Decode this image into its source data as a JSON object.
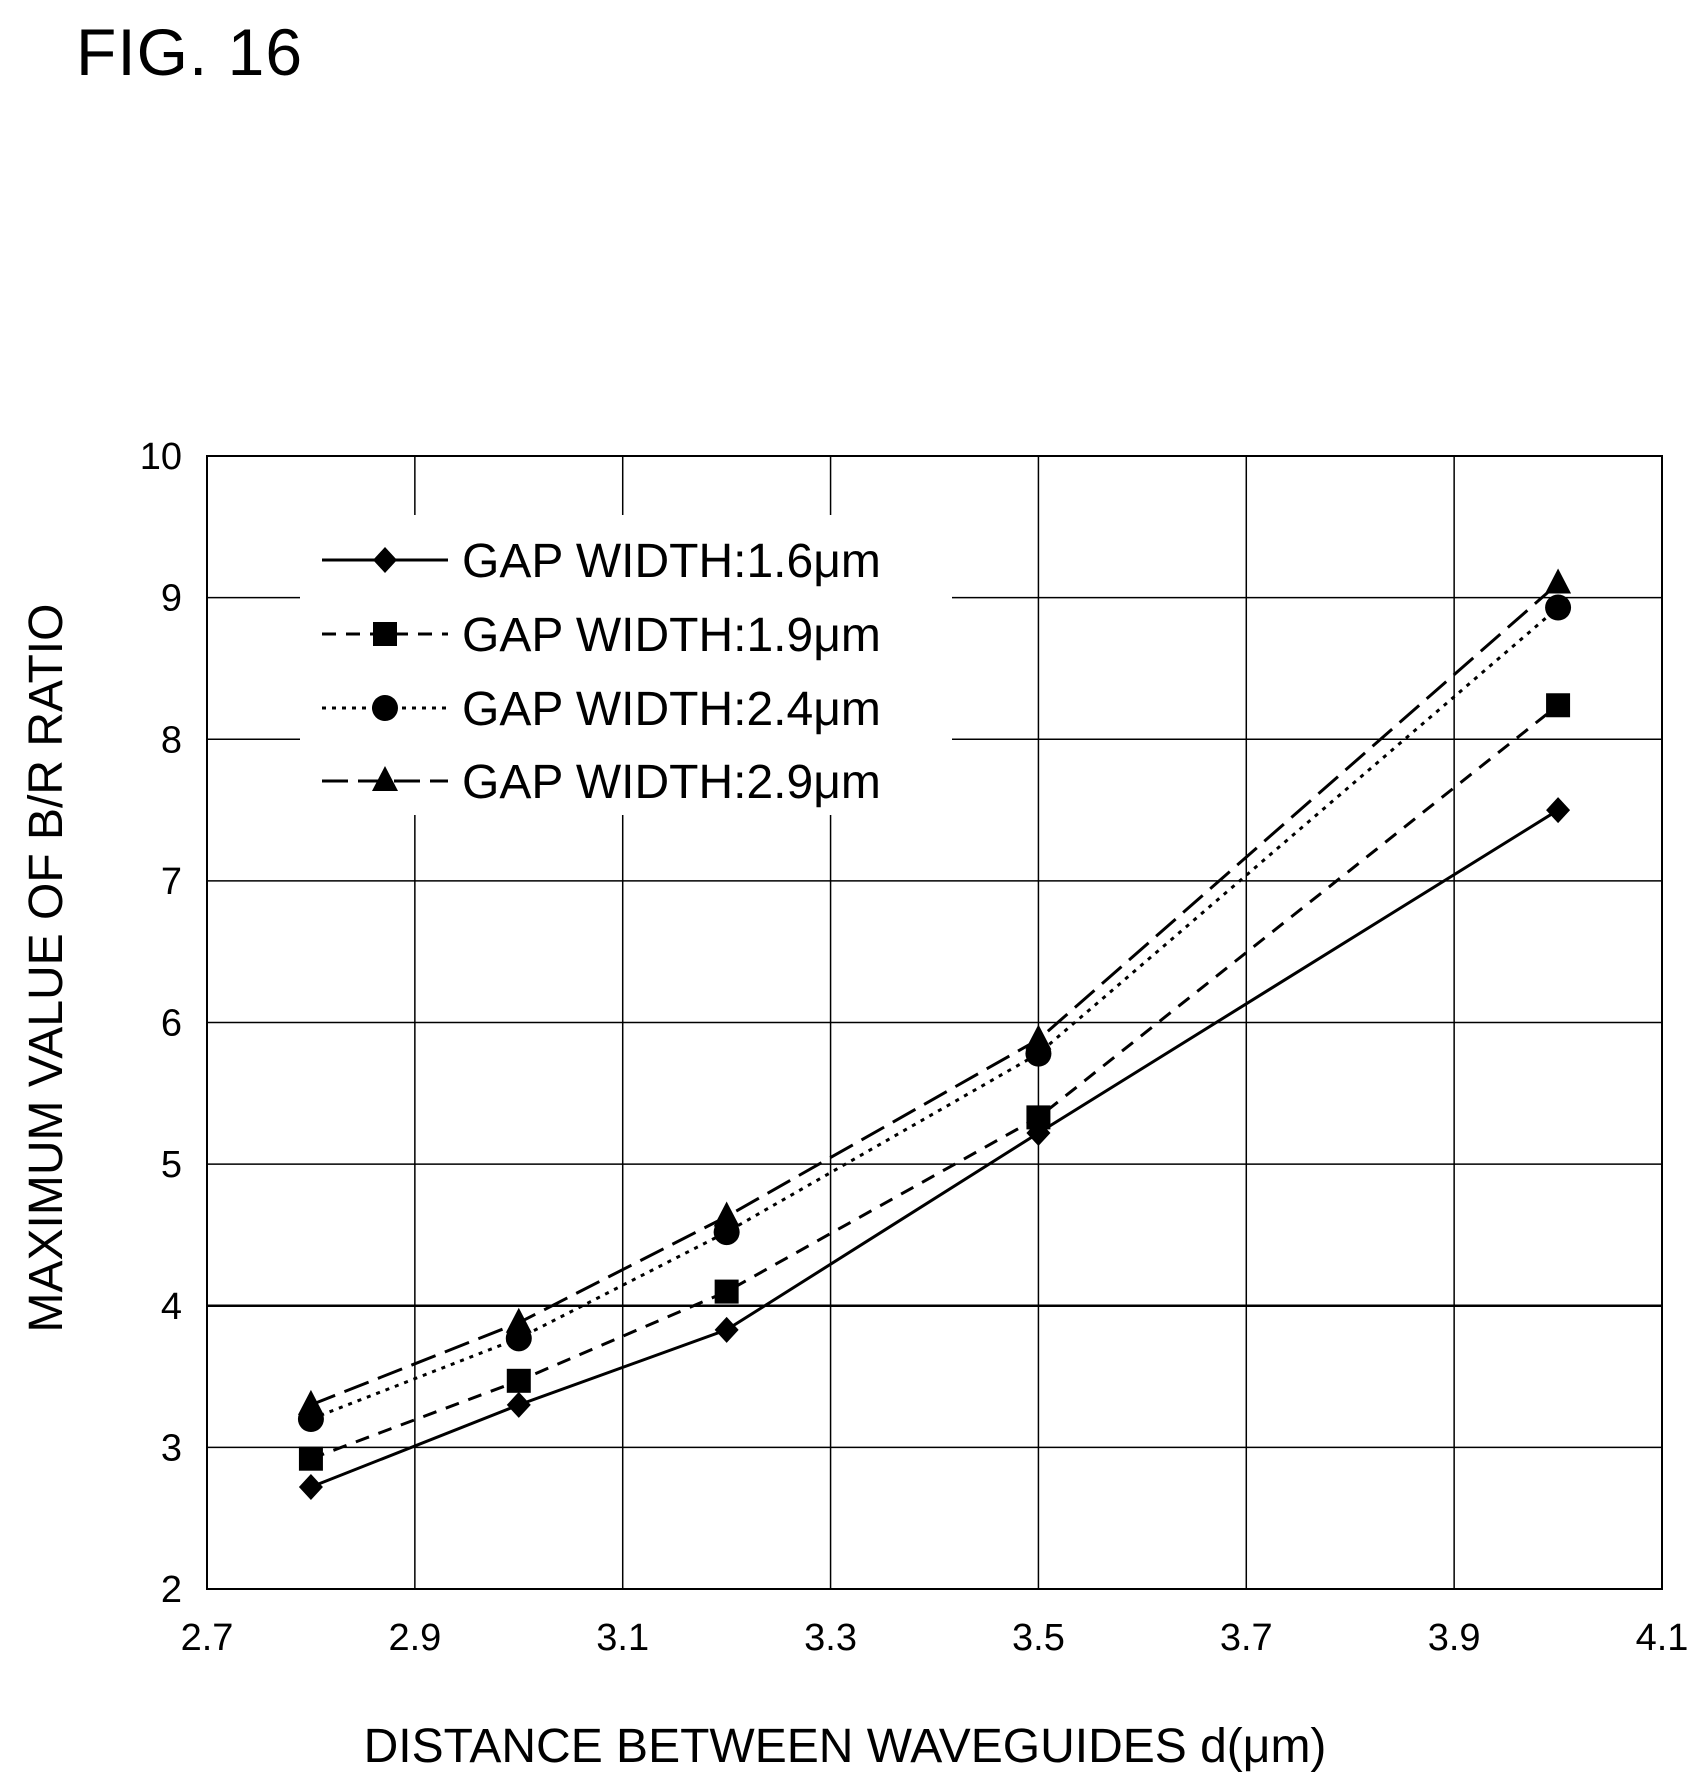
{
  "figure_title": "FIG. 16",
  "chart_data": {
    "type": "line",
    "title": "",
    "xlabel": "DISTANCE BETWEEN WAVEGUIDES d(μm)",
    "ylabel": "MAXIMUM VALUE OF B/R RATIO",
    "xlim": [
      2.7,
      4.1
    ],
    "ylim": [
      2,
      10
    ],
    "x_ticks": [
      "2.7",
      "2.9",
      "3.1",
      "3.3",
      "3.5",
      "3.7",
      "3.9",
      "4.1"
    ],
    "y_ticks": [
      "2",
      "3",
      "4",
      "5",
      "6",
      "7",
      "8",
      "9",
      "10"
    ],
    "grid": true,
    "legend_position": "top-left",
    "x": [
      2.8,
      3.0,
      3.2,
      3.5,
      4.0
    ],
    "series": [
      {
        "name": "GAP WIDTH:1.6μm",
        "marker": "diamond",
        "line": "solid",
        "values": [
          2.72,
          3.3,
          3.83,
          5.22,
          7.5
        ]
      },
      {
        "name": "GAP WIDTH:1.9μm",
        "marker": "square",
        "line": "dashed",
        "values": [
          2.92,
          3.47,
          4.1,
          5.33,
          8.24
        ]
      },
      {
        "name": "GAP WIDTH:2.4μm",
        "marker": "circle",
        "line": "dotted",
        "values": [
          3.2,
          3.77,
          4.52,
          5.78,
          8.93
        ]
      },
      {
        "name": "GAP WIDTH:2.9μm",
        "marker": "triangle",
        "line": "long-dash",
        "values": [
          3.3,
          3.88,
          4.63,
          5.88,
          9.1
        ]
      }
    ]
  }
}
